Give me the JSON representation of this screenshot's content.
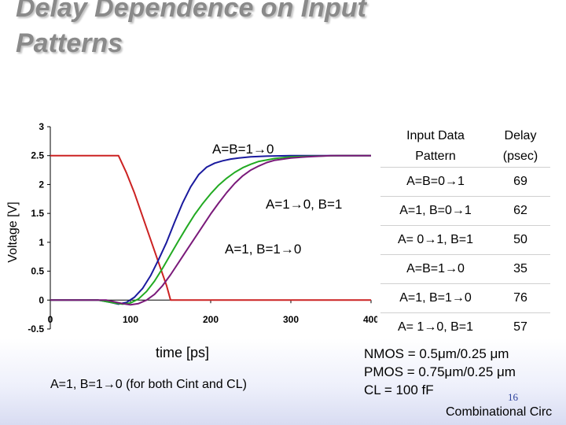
{
  "slide": {
    "title_line1": "Delay Dependence on Input",
    "title_line2": "Patterns",
    "footer": "Combinational Circ",
    "page_number": "16"
  },
  "chart_data": {
    "type": "line",
    "xlabel": "time [ps]",
    "ylabel": "Voltage [V]",
    "xlim": [
      0,
      400
    ],
    "ylim": [
      -0.5,
      3
    ],
    "xticks": [
      "0",
      "100",
      "200",
      "300",
      "400"
    ],
    "yticks": [
      "3",
      "2.5",
      "2",
      "1.5",
      "1",
      "0.5",
      "0",
      "-0.5"
    ],
    "grid": false,
    "colors": {
      "input": "#cc2222",
      "ab10": "#1a1a9e",
      "a10b1": "#22aa22",
      "a1b10": "#7a1a7a"
    },
    "series": [
      {
        "key": "input",
        "x": [
          0,
          85,
          95,
          105,
          115,
          125,
          135,
          145,
          150,
          400
        ],
        "y": [
          2.5,
          2.5,
          2.2,
          1.85,
          1.45,
          1.05,
          0.65,
          0.25,
          0,
          0
        ]
      },
      {
        "key": "ab10",
        "x": [
          0,
          60,
          75,
          85,
          95,
          105,
          115,
          125,
          135,
          145,
          155,
          165,
          175,
          185,
          195,
          205,
          215,
          225,
          235,
          250,
          270,
          300,
          340,
          400
        ],
        "y": [
          0,
          0,
          -0.04,
          -0.07,
          -0.04,
          0.05,
          0.2,
          0.42,
          0.7,
          1.0,
          1.35,
          1.68,
          1.96,
          2.17,
          2.3,
          2.37,
          2.41,
          2.44,
          2.46,
          2.48,
          2.49,
          2.5,
          2.5,
          2.5
        ]
      },
      {
        "key": "a10b1",
        "x": [
          0,
          60,
          80,
          90,
          100,
          110,
          120,
          130,
          140,
          150,
          160,
          170,
          180,
          190,
          200,
          210,
          220,
          230,
          240,
          250,
          260,
          280,
          300,
          330,
          360,
          400
        ],
        "y": [
          0,
          0,
          -0.05,
          -0.07,
          -0.05,
          0.02,
          0.15,
          0.33,
          0.55,
          0.79,
          1.03,
          1.26,
          1.48,
          1.67,
          1.84,
          1.99,
          2.11,
          2.21,
          2.29,
          2.35,
          2.4,
          2.45,
          2.48,
          2.49,
          2.5,
          2.5
        ]
      },
      {
        "key": "a1b10",
        "x": [
          0,
          70,
          90,
          100,
          110,
          120,
          130,
          140,
          150,
          160,
          170,
          180,
          190,
          200,
          210,
          220,
          230,
          240,
          250,
          260,
          270,
          280,
          300,
          320,
          350,
          400
        ],
        "y": [
          0,
          0,
          -0.06,
          -0.08,
          -0.06,
          0.0,
          0.1,
          0.25,
          0.44,
          0.65,
          0.86,
          1.07,
          1.28,
          1.49,
          1.68,
          1.86,
          2.02,
          2.15,
          2.25,
          2.32,
          2.38,
          2.42,
          2.46,
          2.48,
          2.5,
          2.5
        ]
      }
    ],
    "annotations": [
      {
        "text": "A=B=1→0"
      },
      {
        "text": "A=1→0, B=1"
      },
      {
        "text": "A=1, B=1→0"
      }
    ]
  },
  "caption": "A=1, B=1→0 (for both Cint and CL)",
  "table": {
    "header_pattern_1": "Input Data",
    "header_pattern_2": "Pattern",
    "header_delay_1": "Delay",
    "header_delay_2": "(psec)",
    "rows": [
      {
        "pattern": "A=B=0→1",
        "delay": "69"
      },
      {
        "pattern": "A=1, B=0→1",
        "delay": "62"
      },
      {
        "pattern": "A= 0→1, B=1",
        "delay": "50"
      },
      {
        "pattern": "A=B=1→0",
        "delay": "35"
      },
      {
        "pattern": "A=1, B=1→0",
        "delay": "76"
      },
      {
        "pattern": "A= 1→0, B=1",
        "delay": "57"
      }
    ]
  },
  "specs": {
    "nmos": "NMOS = 0.5μm/0.25 μm",
    "pmos": "PMOS = 0.75μm/0.25 μm",
    "cl": "CL = 100 fF"
  }
}
